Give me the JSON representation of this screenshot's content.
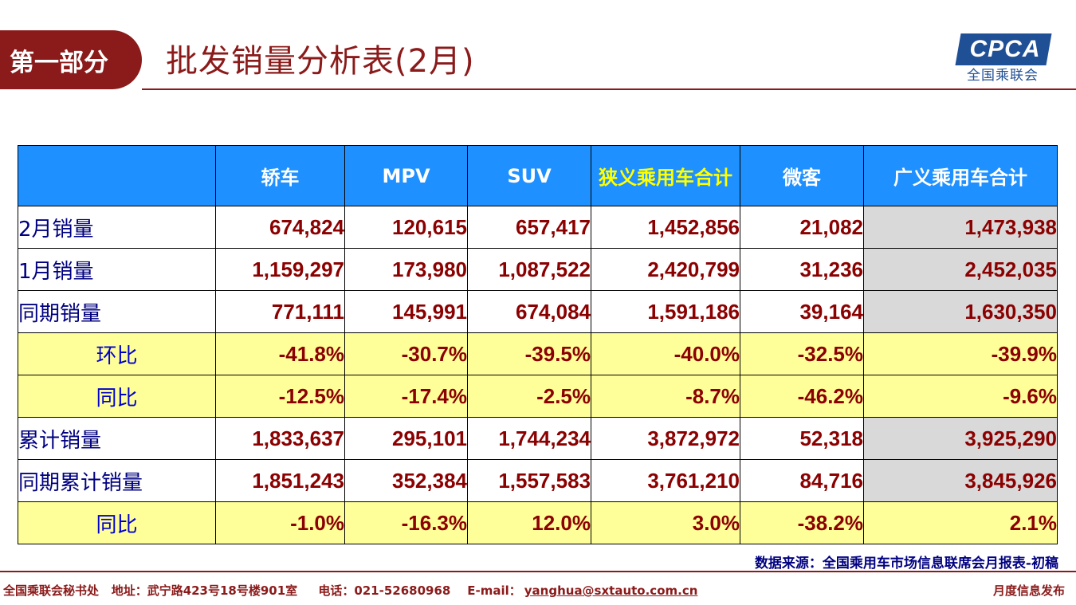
{
  "header": {
    "section": "第一部分",
    "title": "批发销量分析表(2月)",
    "logo_text": "CPCA",
    "logo_sub": "全国乘联会"
  },
  "table": {
    "columns": [
      "",
      "轿车",
      "MPV",
      "SUV",
      "狭义乘用车合计",
      "微客",
      "广义乘用车合计"
    ],
    "rows": [
      {
        "label": "2月销量",
        "values": [
          "674,824",
          "120,615",
          "657,417",
          "1,452,856",
          "21,082",
          "1,473,938"
        ]
      },
      {
        "label": "1月销量",
        "values": [
          "1,159,297",
          "173,980",
          "1,087,522",
          "2,420,799",
          "31,236",
          "2,452,035"
        ]
      },
      {
        "label": "同期销量",
        "values": [
          "771,111",
          "145,991",
          "674,084",
          "1,591,186",
          "39,164",
          "1,630,350"
        ]
      },
      {
        "label": "环比",
        "values": [
          "-41.8%",
          "-30.7%",
          "-39.5%",
          "-40.0%",
          "-32.5%",
          "-39.9%"
        ]
      },
      {
        "label": "同比",
        "values": [
          "-12.5%",
          "-17.4%",
          "-2.5%",
          "-8.7%",
          "-46.2%",
          "-9.6%"
        ]
      },
      {
        "label": "累计销量",
        "values": [
          "1,833,637",
          "295,101",
          "1,744,234",
          "3,872,972",
          "52,318",
          "3,925,290"
        ]
      },
      {
        "label": "同期累计销量",
        "values": [
          "1,851,243",
          "352,384",
          "1,557,583",
          "3,761,210",
          "84,716",
          "3,845,926"
        ]
      },
      {
        "label": "同比",
        "values": [
          "-1.0%",
          "-16.3%",
          "12.0%",
          "3.0%",
          "-38.2%",
          "2.1%"
        ]
      }
    ]
  },
  "source": "数据来源：全国乘用车市场信息联席会月报表-初稿",
  "footer": {
    "org": "全国乘联会秘书处",
    "address": "地址：武宁路423号18号楼901室",
    "phone": "电话：021-52680968",
    "email_label": "E-mail：",
    "email": "yanghua@sxtauto.com.cn",
    "right": "月度信息发布"
  },
  "colors": {
    "brand": "#8b1a1a",
    "header_bg": "#1e90ff",
    "highlight_text": "#ffff00",
    "pct_row_bg": "#ffff99",
    "value_text": "#8b0000"
  }
}
